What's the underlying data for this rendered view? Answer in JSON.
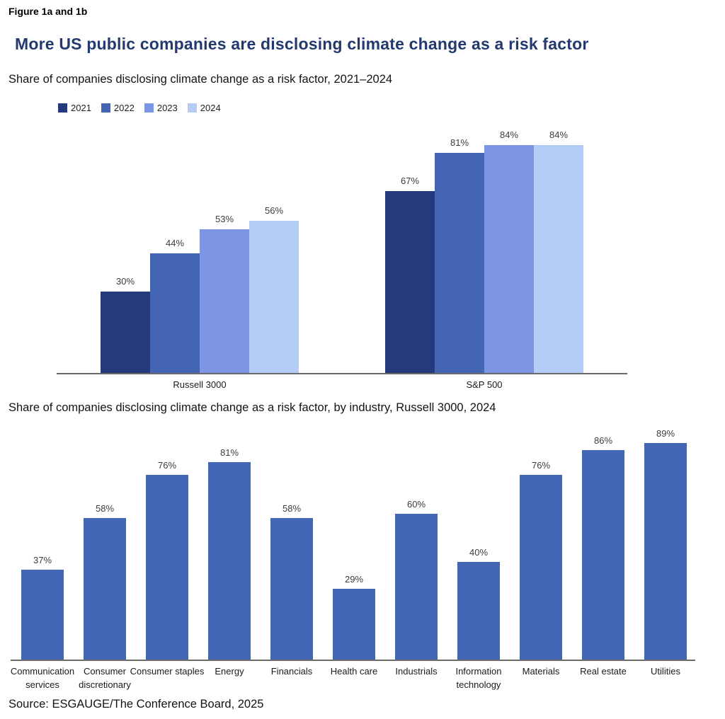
{
  "header": {
    "figure_label": "Figure 1a and 1b",
    "title": "More US public companies are disclosing climate change as a risk factor"
  },
  "colors": {
    "title_navy": "#24396F",
    "axis_gray": "#6b6b6b",
    "value_label": "#3c3c3c",
    "bar_2021": "#253A7D",
    "bar_2022": "#4365B4",
    "bar_2023": "#7D96E3",
    "bar_2024": "#B4CDF6",
    "bar_industry": "#4467B5"
  },
  "chart_data": [
    {
      "id": "chart1",
      "type": "bar",
      "subtitle": "Share of companies disclosing climate change as a risk factor, 2021–2024",
      "categories": [
        "Russell 3000",
        "S&P 500"
      ],
      "series": [
        {
          "name": "2021",
          "color": "#253A7D",
          "values": [
            30,
            67
          ]
        },
        {
          "name": "2022",
          "color": "#4365B4",
          "values": [
            44,
            81
          ]
        },
        {
          "name": "2023",
          "color": "#7D96E3",
          "values": [
            53,
            84
          ]
        },
        {
          "name": "2024",
          "color": "#B4CDF6",
          "values": [
            56,
            84
          ]
        }
      ],
      "unit": "%",
      "ylim": [
        0,
        100
      ],
      "grid": false,
      "legend_position": "top-left",
      "data_labels": true
    },
    {
      "id": "chart2",
      "type": "bar",
      "subtitle": "Share of companies disclosing climate change as a risk factor, by industry, Russell 3000, 2024",
      "categories": [
        "Communication services",
        "Consumer discretionary",
        "Consumer staples",
        "Energy",
        "Financials",
        "Health care",
        "Industrials",
        "Information technology",
        "Materials",
        "Real estate",
        "Utilities"
      ],
      "values": [
        37,
        58,
        76,
        81,
        58,
        29,
        60,
        40,
        76,
        86,
        89
      ],
      "bar_color": "#4467B5",
      "unit": "%",
      "ylim": [
        0,
        100
      ],
      "grid": false,
      "data_labels": true
    }
  ],
  "footer": {
    "source": "Source: ESGAUGE/The Conference Board, 2025"
  }
}
